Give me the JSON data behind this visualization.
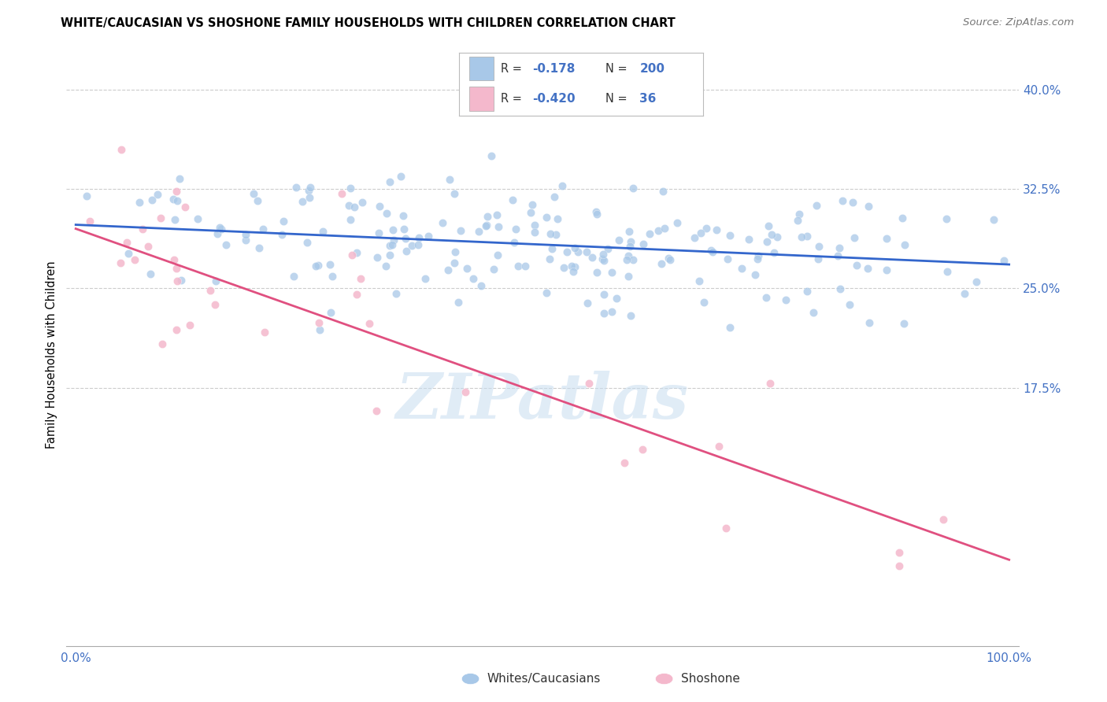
{
  "title": "WHITE/CAUCASIAN VS SHOSHONE FAMILY HOUSEHOLDS WITH CHILDREN CORRELATION CHART",
  "source": "Source: ZipAtlas.com",
  "ylabel": "Family Households with Children",
  "ylim": [
    -0.02,
    0.42
  ],
  "xlim": [
    -0.01,
    1.01
  ],
  "watermark": "ZIPatlas",
  "blue_color": "#a8c8e8",
  "pink_color": "#f4b8cc",
  "blue_line_color": "#3366cc",
  "pink_line_color": "#e05080",
  "dot_size": 55,
  "trend_blue_x0": 0.0,
  "trend_blue_y0": 0.298,
  "trend_blue_x1": 1.0,
  "trend_blue_y1": 0.268,
  "trend_pink_x0": 0.0,
  "trend_pink_y0": 0.295,
  "trend_pink_x1": 1.0,
  "trend_pink_y1": 0.045,
  "ytick_vals": [
    0.175,
    0.25,
    0.325,
    0.4
  ],
  "ytick_labels": [
    "17.5%",
    "25.0%",
    "32.5%",
    "40.0%"
  ]
}
